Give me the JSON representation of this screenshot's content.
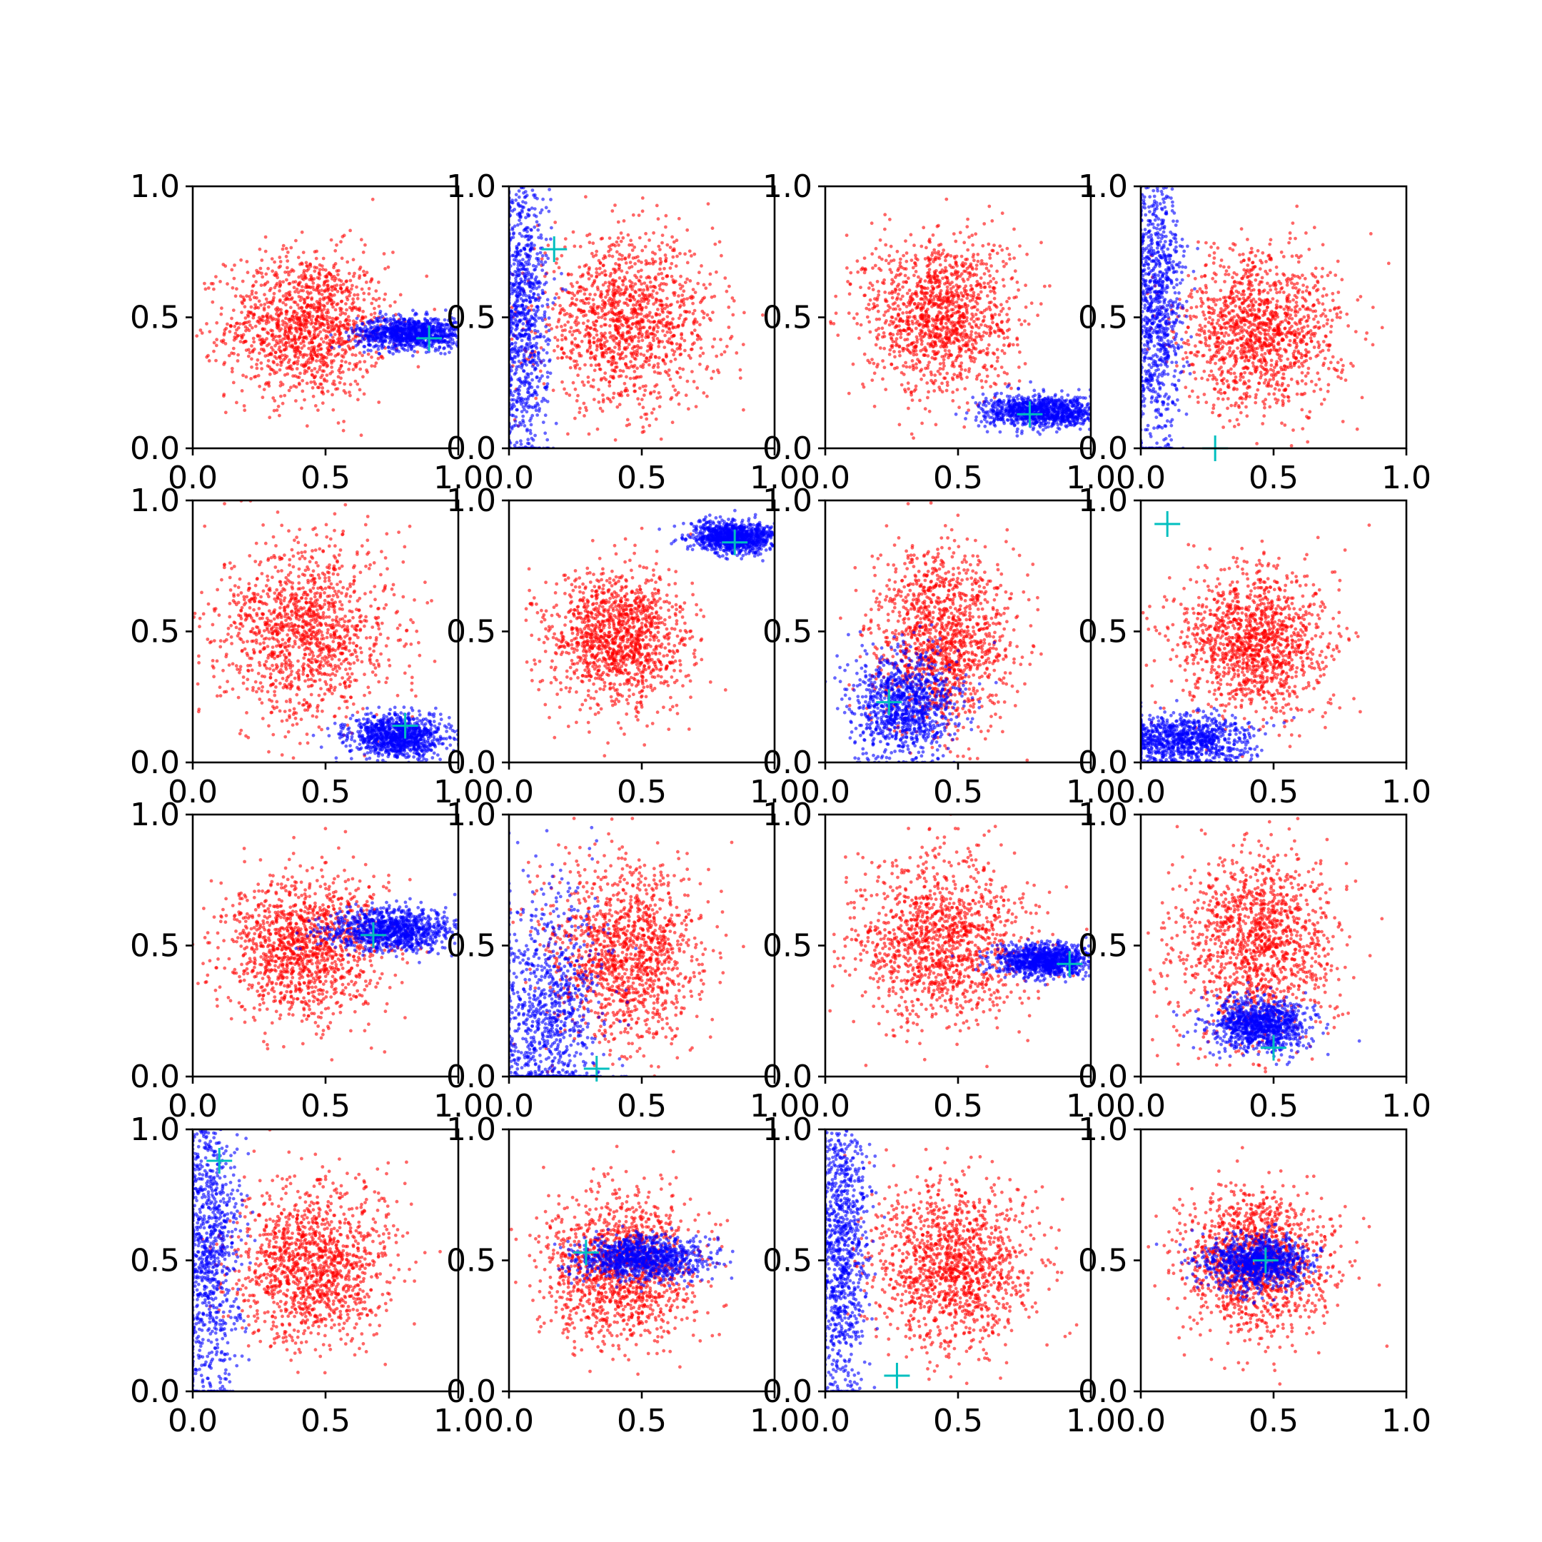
{
  "figure": {
    "layout": "4x4 grid of scatter subplots"
  },
  "colors": {
    "cluster_red": "#ff0000",
    "cluster_blue": "#0000ff",
    "marker": "#00bfbf"
  },
  "tick_labels": [
    "0.0",
    "0.5",
    "1.0"
  ],
  "chart_data": [
    {
      "type": "scatter",
      "xlim": [
        0,
        1
      ],
      "ylim": [
        0,
        1
      ],
      "grid": false,
      "red": {
        "cx": 0.43,
        "cy": 0.47,
        "sx": 0.15,
        "sy": 0.14
      },
      "blue": {
        "cx": 0.82,
        "cy": 0.44,
        "sx": 0.1,
        "sy": 0.03
      },
      "marker": [
        0.89,
        0.42
      ]
    },
    {
      "type": "scatter",
      "xlim": [
        0,
        1
      ],
      "ylim": [
        0,
        1
      ],
      "grid": false,
      "red": {
        "cx": 0.44,
        "cy": 0.48,
        "sx": 0.17,
        "sy": 0.16
      },
      "blue": {
        "cx": 0.05,
        "cy": 0.5,
        "sx": 0.05,
        "sy": 0.3
      },
      "marker": [
        0.17,
        0.76
      ]
    },
    {
      "type": "scatter",
      "xlim": [
        0,
        1
      ],
      "ylim": [
        0,
        1
      ],
      "grid": false,
      "red": {
        "cx": 0.43,
        "cy": 0.51,
        "sx": 0.14,
        "sy": 0.15
      },
      "blue": {
        "cx": 0.82,
        "cy": 0.14,
        "sx": 0.11,
        "sy": 0.03
      },
      "marker": [
        0.77,
        0.13
      ]
    },
    {
      "type": "scatter",
      "xlim": [
        0,
        1
      ],
      "ylim": [
        0,
        1
      ],
      "grid": false,
      "red": {
        "cx": 0.45,
        "cy": 0.45,
        "sx": 0.15,
        "sy": 0.15
      },
      "blue": {
        "cx": 0.06,
        "cy": 0.55,
        "sx": 0.05,
        "sy": 0.28
      },
      "marker": [
        0.28,
        0.0
      ]
    },
    {
      "type": "scatter",
      "xlim": [
        0,
        1
      ],
      "ylim": [
        0,
        1
      ],
      "grid": false,
      "red": {
        "cx": 0.43,
        "cy": 0.5,
        "sx": 0.16,
        "sy": 0.17
      },
      "blue": {
        "cx": 0.77,
        "cy": 0.1,
        "sx": 0.09,
        "sy": 0.04
      },
      "marker": [
        0.8,
        0.14
      ]
    },
    {
      "type": "scatter",
      "xlim": [
        0,
        1
      ],
      "ylim": [
        0,
        1
      ],
      "grid": false,
      "red": {
        "cx": 0.41,
        "cy": 0.47,
        "sx": 0.13,
        "sy": 0.13
      },
      "blue": {
        "cx": 0.85,
        "cy": 0.86,
        "sx": 0.08,
        "sy": 0.03
      },
      "marker": [
        0.85,
        0.84
      ]
    },
    {
      "type": "scatter",
      "xlim": [
        0,
        1
      ],
      "ylim": [
        0,
        1
      ],
      "grid": false,
      "red": {
        "cx": 0.44,
        "cy": 0.47,
        "sx": 0.13,
        "sy": 0.17
      },
      "blue": {
        "cx": 0.3,
        "cy": 0.22,
        "sx": 0.1,
        "sy": 0.1
      },
      "marker": [
        0.24,
        0.23
      ]
    },
    {
      "type": "scatter",
      "xlim": [
        0,
        1
      ],
      "ylim": [
        0,
        1
      ],
      "grid": false,
      "red": {
        "cx": 0.42,
        "cy": 0.46,
        "sx": 0.14,
        "sy": 0.14
      },
      "blue": {
        "cx": 0.15,
        "cy": 0.08,
        "sx": 0.13,
        "sy": 0.05
      },
      "marker": [
        0.1,
        0.91
      ]
    },
    {
      "type": "scatter",
      "xlim": [
        0,
        1
      ],
      "ylim": [
        0,
        1
      ],
      "grid": false,
      "red": {
        "cx": 0.42,
        "cy": 0.49,
        "sx": 0.15,
        "sy": 0.14
      },
      "blue": {
        "cx": 0.75,
        "cy": 0.56,
        "sx": 0.12,
        "sy": 0.04
      },
      "marker": [
        0.68,
        0.54
      ]
    },
    {
      "type": "scatter",
      "xlim": [
        0,
        1
      ],
      "ylim": [
        0,
        1
      ],
      "grid": false,
      "red": {
        "cx": 0.44,
        "cy": 0.47,
        "sx": 0.14,
        "sy": 0.17
      },
      "blue": {
        "cx": 0.15,
        "cy": 0.2,
        "sx": 0.1,
        "sy": 0.25
      },
      "marker": [
        0.33,
        0.03
      ]
    },
    {
      "type": "scatter",
      "xlim": [
        0,
        1
      ],
      "ylim": [
        0,
        1
      ],
      "grid": false,
      "red": {
        "cx": 0.44,
        "cy": 0.51,
        "sx": 0.16,
        "sy": 0.16
      },
      "blue": {
        "cx": 0.83,
        "cy": 0.44,
        "sx": 0.09,
        "sy": 0.03
      },
      "marker": [
        0.92,
        0.43
      ]
    },
    {
      "type": "scatter",
      "xlim": [
        0,
        1
      ],
      "ylim": [
        0,
        1
      ],
      "grid": false,
      "red": {
        "cx": 0.44,
        "cy": 0.51,
        "sx": 0.15,
        "sy": 0.18
      },
      "blue": {
        "cx": 0.45,
        "cy": 0.2,
        "sx": 0.09,
        "sy": 0.05
      },
      "marker": [
        0.5,
        0.11
      ]
    },
    {
      "type": "scatter",
      "xlim": [
        0,
        1
      ],
      "ylim": [
        0,
        1
      ],
      "grid": false,
      "red": {
        "cx": 0.45,
        "cy": 0.48,
        "sx": 0.15,
        "sy": 0.15
      },
      "blue": {
        "cx": 0.06,
        "cy": 0.55,
        "sx": 0.06,
        "sy": 0.3
      },
      "marker": [
        0.1,
        0.88
      ]
    },
    {
      "type": "scatter",
      "xlim": [
        0,
        1
      ],
      "ylim": [
        0,
        1
      ],
      "grid": false,
      "red": {
        "cx": 0.42,
        "cy": 0.48,
        "sx": 0.14,
        "sy": 0.14
      },
      "blue": {
        "cx": 0.5,
        "cy": 0.51,
        "sx": 0.12,
        "sy": 0.04
      },
      "marker": [
        0.29,
        0.53
      ]
    },
    {
      "type": "scatter",
      "xlim": [
        0,
        1
      ],
      "ylim": [
        0,
        1
      ],
      "grid": false,
      "red": {
        "cx": 0.48,
        "cy": 0.47,
        "sx": 0.15,
        "sy": 0.15
      },
      "blue": {
        "cx": 0.06,
        "cy": 0.55,
        "sx": 0.05,
        "sy": 0.3
      },
      "marker": [
        0.27,
        0.06
      ]
    },
    {
      "type": "scatter",
      "xlim": [
        0,
        1
      ],
      "ylim": [
        0,
        1
      ],
      "grid": false,
      "red": {
        "cx": 0.43,
        "cy": 0.49,
        "sx": 0.14,
        "sy": 0.14
      },
      "blue": {
        "cx": 0.44,
        "cy": 0.49,
        "sx": 0.1,
        "sy": 0.05
      },
      "marker": [
        0.47,
        0.5
      ]
    }
  ]
}
